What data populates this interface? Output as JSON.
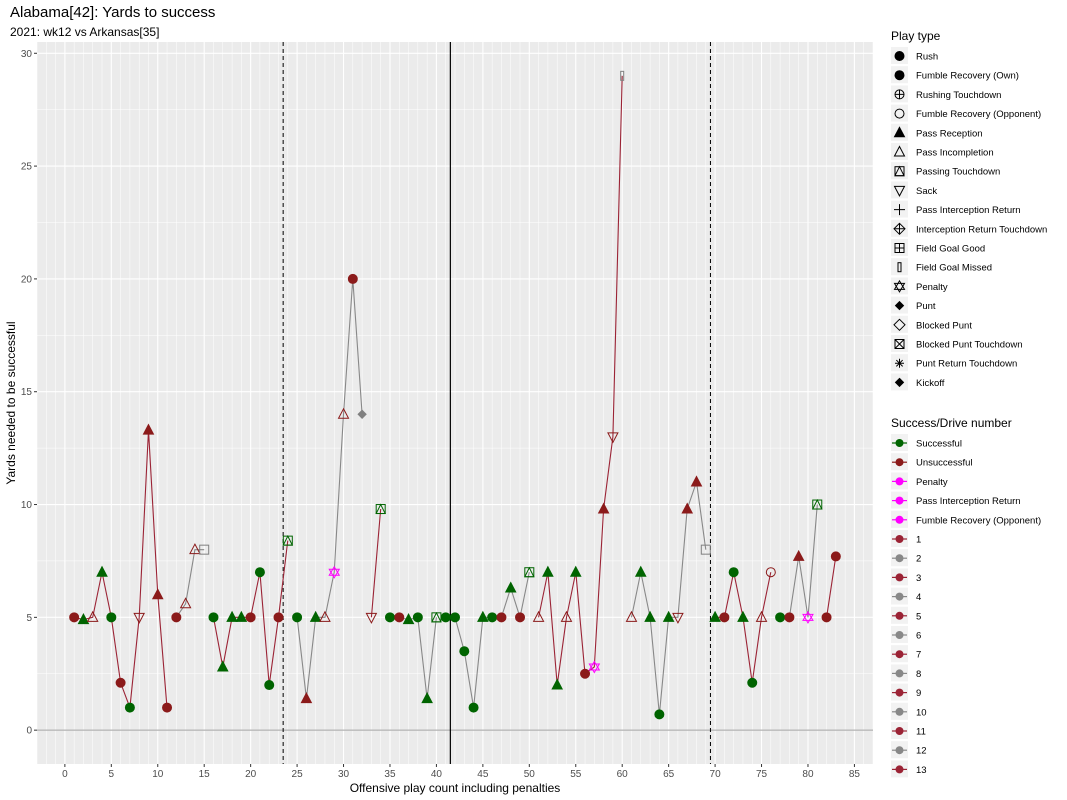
{
  "title": "Alabama[42]: Yards to success",
  "subtitle": "2021: wk12 vs Arkansas[35]",
  "chart_data": {
    "type": "scatter",
    "title": "Alabama[42]: Yards to success",
    "subtitle": "2021: wk12 vs Arkansas[35]",
    "xlabel": "Offensive play count including penalties",
    "ylabel": "Yards needed to be successful",
    "xlim": [
      -3,
      87
    ],
    "ylim": [
      -1.5,
      30.5
    ],
    "xticks": [
      0,
      5,
      10,
      15,
      20,
      25,
      30,
      35,
      40,
      45,
      50,
      55,
      60,
      65,
      70,
      75,
      80,
      85
    ],
    "yticks": [
      0,
      5,
      10,
      15,
      20,
      25,
      30
    ],
    "grid": true,
    "reference_lines": {
      "dashed_x": [
        23.5,
        69.5
      ],
      "solid_x": [
        41.5
      ],
      "solid_y": [
        0
      ]
    },
    "colors": {
      "Successful": "#006400",
      "Unsuccessful": "#8b1a1a",
      "Penalty": "#ff00ff",
      "odd_drive": "#9b2335",
      "even_drive": "#888888"
    },
    "legend_play_type": {
      "title": "Play type",
      "entries": [
        {
          "label": "Rush",
          "shape": "circle-filled"
        },
        {
          "label": "Fumble Recovery (Own)",
          "shape": "circle-filled"
        },
        {
          "label": "Rushing Touchdown",
          "shape": "circle-plus"
        },
        {
          "label": "Fumble Recovery (Opponent)",
          "shape": "circle-open"
        },
        {
          "label": "Pass Reception",
          "shape": "triangle-filled"
        },
        {
          "label": "Pass Incompletion",
          "shape": "triangle-open"
        },
        {
          "label": "Passing Touchdown",
          "shape": "square-triangle"
        },
        {
          "label": "Sack",
          "shape": "triangle-down-open"
        },
        {
          "label": "Pass Interception Return",
          "shape": "plus"
        },
        {
          "label": "Interception Return Touchdown",
          "shape": "diamond-plus"
        },
        {
          "label": "Field Goal Good",
          "shape": "square-plus"
        },
        {
          "label": "Field Goal Missed",
          "shape": "rect-thin"
        },
        {
          "label": "Penalty",
          "shape": "star-of-david"
        },
        {
          "label": "Punt",
          "shape": "diamond-filled"
        },
        {
          "label": "Blocked Punt",
          "shape": "diamond-open"
        },
        {
          "label": "Blocked Punt Touchdown",
          "shape": "square-x"
        },
        {
          "label": "Punt Return Touchdown",
          "shape": "asterisk"
        },
        {
          "label": "Kickoff",
          "shape": "diamond-filled"
        }
      ]
    },
    "legend_success": {
      "title": "Success/Drive number",
      "entries": [
        {
          "label": "Successful",
          "color": "#006400"
        },
        {
          "label": "Unsuccessful",
          "color": "#8b1a1a"
        },
        {
          "label": "Penalty",
          "color": "#ff00ff"
        },
        {
          "label": "Pass Interception Return",
          "color": "#ff00ff"
        },
        {
          "label": "Fumble Recovery (Opponent)",
          "color": "#ff00ff"
        },
        {
          "label": "1",
          "color": "#9b2335"
        },
        {
          "label": "2",
          "color": "#888888"
        },
        {
          "label": "3",
          "color": "#9b2335"
        },
        {
          "label": "4",
          "color": "#888888"
        },
        {
          "label": "5",
          "color": "#9b2335"
        },
        {
          "label": "6",
          "color": "#888888"
        },
        {
          "label": "7",
          "color": "#9b2335"
        },
        {
          "label": "8",
          "color": "#888888"
        },
        {
          "label": "9",
          "color": "#9b2335"
        },
        {
          "label": "10",
          "color": "#888888"
        },
        {
          "label": "11",
          "color": "#9b2335"
        },
        {
          "label": "12",
          "color": "#888888"
        },
        {
          "label": "13",
          "color": "#9b2335"
        }
      ]
    },
    "drives": [
      {
        "drive": 1,
        "points": [
          {
            "x": 1,
            "y": 5,
            "type": "Rush",
            "result": "Unsuccessful"
          },
          {
            "x": 2,
            "y": 4.9,
            "type": "Pass Reception",
            "result": "Successful"
          },
          {
            "x": 3,
            "y": 5,
            "type": "Pass Incompletion",
            "result": "Unsuccessful"
          },
          {
            "x": 4,
            "y": 7,
            "type": "Pass Reception",
            "result": "Successful"
          },
          {
            "x": 5,
            "y": 5,
            "type": "Rush",
            "result": "Successful"
          },
          {
            "x": 6,
            "y": 2.1,
            "type": "Rush",
            "result": "Unsuccessful"
          },
          {
            "x": 7,
            "y": 1,
            "type": "Rush",
            "result": "Successful"
          },
          {
            "x": 8,
            "y": 5,
            "type": "Sack",
            "result": "Unsuccessful"
          },
          {
            "x": 9,
            "y": 13.3,
            "type": "Pass Reception",
            "result": "Unsuccessful"
          },
          {
            "x": 10,
            "y": 6,
            "type": "Pass Reception",
            "result": "Unsuccessful"
          },
          {
            "x": 11,
            "y": 1,
            "type": "Rush",
            "result": "Unsuccessful"
          }
        ]
      },
      {
        "drive": 2,
        "points": [
          {
            "x": 12,
            "y": 5,
            "type": "Rush",
            "result": "Unsuccessful"
          },
          {
            "x": 13,
            "y": 5.6,
            "type": "Pass Incompletion",
            "result": "Unsuccessful"
          },
          {
            "x": 14,
            "y": 8,
            "type": "Pass Incompletion",
            "result": "Unsuccessful"
          },
          {
            "x": 15,
            "y": 8,
            "type": "Field Goal Missed",
            "result": "Unsuccessful"
          }
        ]
      },
      {
        "drive": 3,
        "points": [
          {
            "x": 16,
            "y": 5,
            "type": "Rush",
            "result": "Successful"
          },
          {
            "x": 17,
            "y": 2.8,
            "type": "Pass Reception",
            "result": "Successful"
          },
          {
            "x": 18,
            "y": 5,
            "type": "Pass Reception",
            "result": "Successful"
          },
          {
            "x": 19,
            "y": 5,
            "type": "Pass Reception",
            "result": "Successful"
          },
          {
            "x": 20,
            "y": 5,
            "type": "Rush",
            "result": "Unsuccessful"
          },
          {
            "x": 21,
            "y": 7,
            "type": "Rush",
            "result": "Successful"
          },
          {
            "x": 22,
            "y": 2,
            "type": "Rush",
            "result": "Successful"
          },
          {
            "x": 23,
            "y": 5,
            "type": "Rush",
            "result": "Unsuccessful"
          },
          {
            "x": 24,
            "y": 8.4,
            "type": "Passing Touchdown",
            "result": "Successful"
          }
        ]
      },
      {
        "drive": 4,
        "points": [
          {
            "x": 25,
            "y": 5,
            "type": "Rush",
            "result": "Successful"
          },
          {
            "x": 26,
            "y": 1.4,
            "type": "Pass Reception",
            "result": "Unsuccessful"
          },
          {
            "x": 27,
            "y": 5,
            "type": "Pass Reception",
            "result": "Successful"
          },
          {
            "x": 28,
            "y": 5,
            "type": "Pass Incompletion",
            "result": "Unsuccessful"
          },
          {
            "x": 29,
            "y": 7,
            "type": "Penalty",
            "result": "Penalty"
          },
          {
            "x": 30,
            "y": 14,
            "type": "Pass Incompletion",
            "result": "Unsuccessful"
          },
          {
            "x": 31,
            "y": 20,
            "type": "Rush",
            "result": "Unsuccessful"
          },
          {
            "x": 32,
            "y": 14,
            "type": "Punt",
            "result": "Unsuccessful"
          }
        ]
      },
      {
        "drive": 5,
        "points": [
          {
            "x": 33,
            "y": 5,
            "type": "Sack",
            "result": "Unsuccessful"
          },
          {
            "x": 34,
            "y": 9.8,
            "type": "Passing Touchdown",
            "result": "Successful"
          }
        ]
      },
      {
        "drive": 6,
        "points": [
          {
            "x": 35,
            "y": 5,
            "type": "Rush",
            "result": "Successful"
          },
          {
            "x": 36,
            "y": 5,
            "type": "Rush",
            "result": "Unsuccessful"
          },
          {
            "x": 37,
            "y": 4.9,
            "type": "Pass Reception",
            "result": "Successful"
          },
          {
            "x": 38,
            "y": 5,
            "type": "Rush",
            "result": "Successful"
          },
          {
            "x": 39,
            "y": 1.4,
            "type": "Pass Reception",
            "result": "Successful"
          },
          {
            "x": 40,
            "y": 5,
            "type": "Passing Touchdown",
            "result": "Successful"
          }
        ]
      },
      {
        "drive": 7,
        "points": [
          {
            "x": 41,
            "y": 5,
            "type": "Rush",
            "result": "Successful"
          }
        ]
      },
      {
        "drive": 8,
        "points": [
          {
            "x": 42,
            "y": 5,
            "type": "Rush",
            "result": "Successful"
          },
          {
            "x": 43,
            "y": 3.5,
            "type": "Rush",
            "result": "Successful"
          },
          {
            "x": 44,
            "y": 1,
            "type": "Rush",
            "result": "Successful"
          },
          {
            "x": 45,
            "y": 5,
            "type": "Pass Reception",
            "result": "Successful"
          },
          {
            "x": 46,
            "y": 5,
            "type": "Rush",
            "result": "Successful"
          },
          {
            "x": 47,
            "y": 5,
            "type": "Rush",
            "result": "Unsuccessful"
          },
          {
            "x": 48,
            "y": 6.3,
            "type": "Pass Reception",
            "result": "Successful"
          },
          {
            "x": 49,
            "y": 5,
            "type": "Rush",
            "result": "Unsuccessful"
          },
          {
            "x": 50,
            "y": 7,
            "type": "Passing Touchdown",
            "result": "Successful"
          }
        ]
      },
      {
        "drive": 9,
        "points": [
          {
            "x": 51,
            "y": 5,
            "type": "Pass Incompletion",
            "result": "Unsuccessful"
          },
          {
            "x": 52,
            "y": 7,
            "type": "Pass Reception",
            "result": "Successful"
          },
          {
            "x": 53,
            "y": 2,
            "type": "Pass Reception",
            "result": "Successful"
          },
          {
            "x": 54,
            "y": 5,
            "type": "Pass Incompletion",
            "result": "Unsuccessful"
          },
          {
            "x": 55,
            "y": 7,
            "type": "Pass Reception",
            "result": "Successful"
          },
          {
            "x": 56,
            "y": 2.5,
            "type": "Rush",
            "result": "Unsuccessful"
          },
          {
            "x": 57,
            "y": 2.8,
            "type": "Penalty",
            "result": "Penalty"
          },
          {
            "x": 58,
            "y": 9.8,
            "type": "Pass Reception",
            "result": "Unsuccessful"
          },
          {
            "x": 59,
            "y": 13,
            "type": "Sack",
            "result": "Unsuccessful"
          },
          {
            "x": 60,
            "y": 29,
            "type": "Field Goal Missed",
            "result": "Unsuccessful"
          }
        ]
      },
      {
        "drive": 10,
        "points": [
          {
            "x": 61,
            "y": 5,
            "type": "Pass Incompletion",
            "result": "Unsuccessful"
          },
          {
            "x": 62,
            "y": 7,
            "type": "Pass Reception",
            "result": "Successful"
          },
          {
            "x": 63,
            "y": 5,
            "type": "Pass Reception",
            "result": "Successful"
          },
          {
            "x": 64,
            "y": 0.7,
            "type": "Rush",
            "result": "Successful"
          },
          {
            "x": 65,
            "y": 5,
            "type": "Pass Reception",
            "result": "Successful"
          },
          {
            "x": 66,
            "y": 5,
            "type": "Sack",
            "result": "Unsuccessful"
          },
          {
            "x": 67,
            "y": 9.8,
            "type": "Pass Reception",
            "result": "Unsuccessful"
          },
          {
            "x": 68,
            "y": 11,
            "type": "Pass Reception",
            "result": "Unsuccessful"
          },
          {
            "x": 69,
            "y": 8,
            "type": "Field Goal Missed",
            "result": "Unsuccessful"
          }
        ]
      },
      {
        "drive": 11,
        "points": [
          {
            "x": 70,
            "y": 5,
            "type": "Pass Reception",
            "result": "Successful"
          },
          {
            "x": 71,
            "y": 5,
            "type": "Rush",
            "result": "Unsuccessful"
          },
          {
            "x": 72,
            "y": 7,
            "type": "Rush",
            "result": "Successful"
          },
          {
            "x": 73,
            "y": 5,
            "type": "Pass Reception",
            "result": "Successful"
          },
          {
            "x": 74,
            "y": 2.1,
            "type": "Rush",
            "result": "Successful"
          },
          {
            "x": 75,
            "y": 5,
            "type": "Pass Incompletion",
            "result": "Unsuccessful"
          },
          {
            "x": 76,
            "y": 7,
            "type": "Fumble Recovery (Opponent)",
            "result": "Unsuccessful"
          }
        ]
      },
      {
        "drive": 12,
        "points": [
          {
            "x": 77,
            "y": 5,
            "type": "Rush",
            "result": "Successful"
          },
          {
            "x": 78,
            "y": 5,
            "type": "Rush",
            "result": "Unsuccessful"
          },
          {
            "x": 79,
            "y": 7.7,
            "type": "Pass Reception",
            "result": "Unsuccessful"
          },
          {
            "x": 80,
            "y": 5,
            "type": "Penalty",
            "result": "Penalty"
          },
          {
            "x": 81,
            "y": 10,
            "type": "Passing Touchdown",
            "result": "Successful"
          }
        ]
      },
      {
        "drive": 13,
        "points": [
          {
            "x": 82,
            "y": 5,
            "type": "Rush",
            "result": "Unsuccessful"
          },
          {
            "x": 83,
            "y": 7.7,
            "type": "Rush",
            "result": "Unsuccessful"
          }
        ]
      }
    ]
  }
}
